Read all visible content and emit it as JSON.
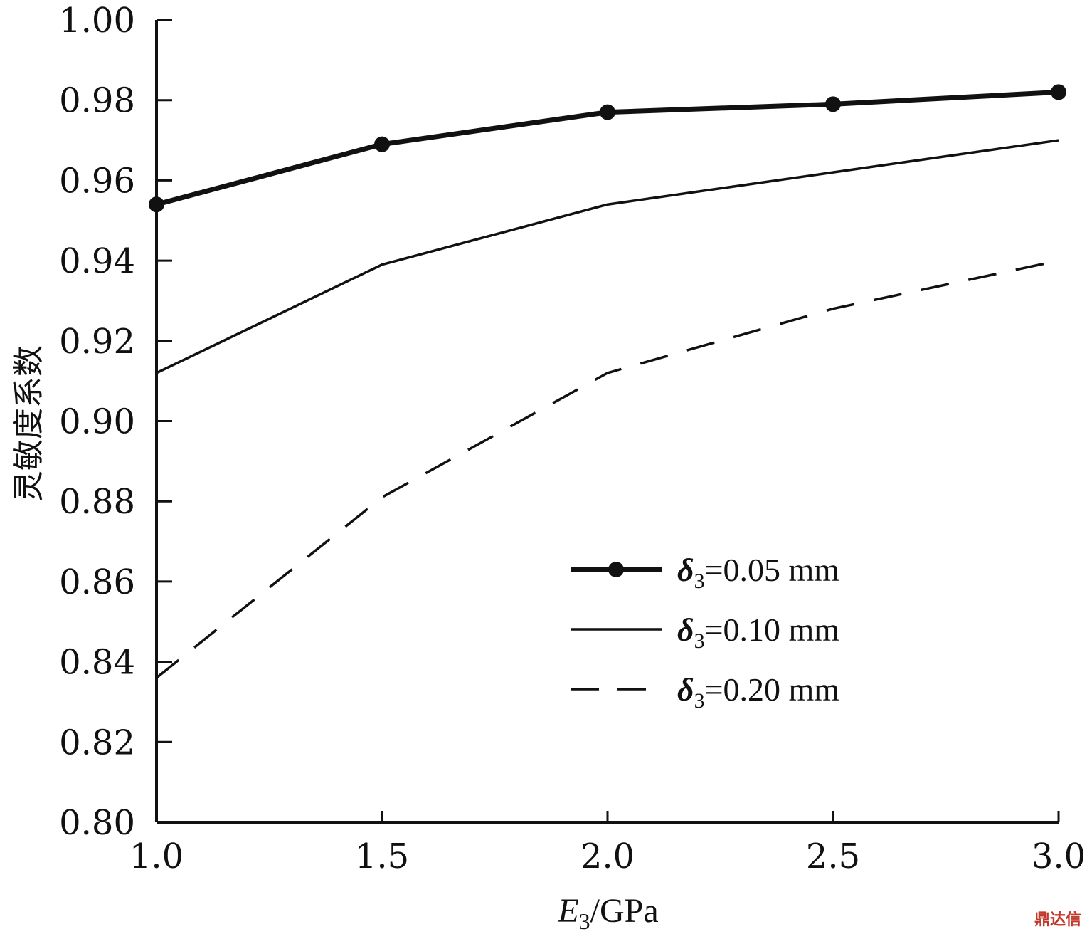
{
  "chart_data": {
    "type": "line",
    "title": "",
    "xlabel_main": "E",
    "xlabel_sub": "3",
    "xlabel_rest": "/GPa",
    "ylabel": "灵敏度系数",
    "xlim": [
      1.0,
      3.0
    ],
    "ylim": [
      0.8,
      1.0
    ],
    "xticks": [
      "1.0",
      "1.5",
      "2.0",
      "2.5",
      "3.0"
    ],
    "yticks": [
      "0.80",
      "0.82",
      "0.84",
      "0.86",
      "0.88",
      "0.90",
      "0.92",
      "0.94",
      "0.96",
      "0.98",
      "1.00"
    ],
    "grid": false,
    "legend_position": "bottom-right",
    "series": [
      {
        "name": "δ3=0.05 mm",
        "label_symbol": "δ",
        "label_sub": "3",
        "label_rest": "=0.05 mm",
        "style": "thick-solid-markers",
        "x": [
          1.0,
          1.5,
          2.0,
          2.5,
          3.0
        ],
        "y": [
          0.954,
          0.969,
          0.977,
          0.979,
          0.982
        ]
      },
      {
        "name": "δ3=0.10 mm",
        "label_symbol": "δ",
        "label_sub": "3",
        "label_rest": "=0.10 mm",
        "style": "thin-solid",
        "x": [
          1.0,
          1.5,
          2.0,
          2.5,
          3.0
        ],
        "y": [
          0.912,
          0.939,
          0.954,
          0.962,
          0.97
        ]
      },
      {
        "name": "δ3=0.20 mm",
        "label_symbol": "δ",
        "label_sub": "3",
        "label_rest": "=0.20 mm",
        "style": "dashed",
        "x": [
          1.0,
          1.5,
          2.0,
          2.5,
          3.0
        ],
        "y": [
          0.836,
          0.881,
          0.912,
          0.928,
          0.94
        ]
      }
    ]
  },
  "watermark": "鼎达信"
}
